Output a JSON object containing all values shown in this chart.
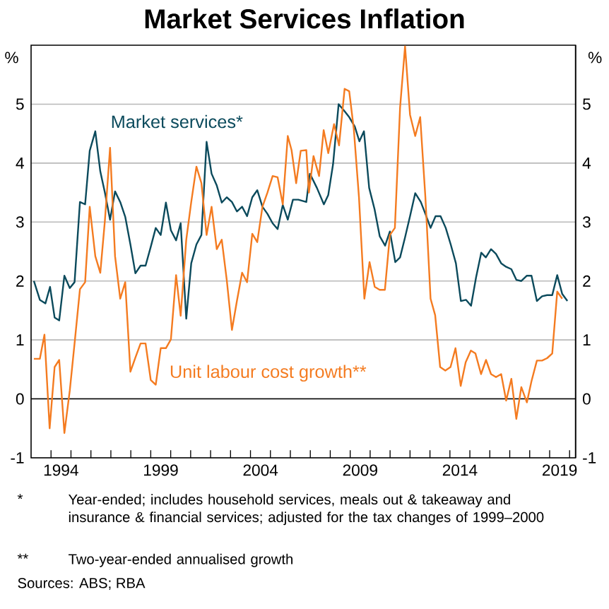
{
  "chart_data": {
    "type": "line",
    "title": "Market Services Inflation",
    "ylabel": "%",
    "y2label": "%",
    "xlim": [
      1993,
      2020.3
    ],
    "ylim": [
      -1,
      6
    ],
    "y2lim": [
      -1,
      6
    ],
    "xticks": [
      {
        "value": 1994.5,
        "label": "1994"
      },
      {
        "value": 1999.5,
        "label": "1999"
      },
      {
        "value": 2004.5,
        "label": "2004"
      },
      {
        "value": 2009.5,
        "label": "2009"
      },
      {
        "value": 2014.5,
        "label": "2014"
      },
      {
        "value": 2019.5,
        "label": "2019"
      },
      {
        "value": 1994,
        "label": null
      },
      {
        "value": 1995,
        "label": null
      },
      {
        "value": 1996,
        "label": null
      },
      {
        "value": 1997,
        "label": null
      },
      {
        "value": 1998,
        "label": null
      },
      {
        "value": 1999,
        "label": null
      },
      {
        "value": 2000,
        "label": null
      },
      {
        "value": 2001,
        "label": null
      },
      {
        "value": 2002,
        "label": null
      },
      {
        "value": 2003,
        "label": null
      },
      {
        "value": 2004,
        "label": null
      },
      {
        "value": 2005,
        "label": null
      },
      {
        "value": 2006,
        "label": null
      },
      {
        "value": 2007,
        "label": null
      },
      {
        "value": 2008,
        "label": null
      },
      {
        "value": 2009,
        "label": null
      },
      {
        "value": 2010,
        "label": null
      },
      {
        "value": 2011,
        "label": null
      },
      {
        "value": 2012,
        "label": null
      },
      {
        "value": 2013,
        "label": null
      },
      {
        "value": 2014,
        "label": null
      },
      {
        "value": 2015,
        "label": null
      },
      {
        "value": 2016,
        "label": null
      },
      {
        "value": 2017,
        "label": null
      },
      {
        "value": 2018,
        "label": null
      },
      {
        "value": 2019,
        "label": null
      },
      {
        "value": 2020,
        "label": null
      }
    ],
    "yticks": [
      -1,
      0,
      1,
      2,
      3,
      4,
      5
    ],
    "y2ticks": [
      -1,
      0,
      1,
      2,
      3,
      4,
      5
    ],
    "grid": "y",
    "legend": false,
    "marker": "none",
    "line_style": "solid",
    "ref_lines": [
      {
        "axis": "y",
        "value": 0,
        "color": "#000000"
      }
    ],
    "series": [
      {
        "name": "Market services*",
        "color": "#0b4a5c",
        "x": [
          1993.14,
          1993.44,
          1993.72,
          1993.95,
          1994.18,
          1994.41,
          1994.67,
          1994.94,
          1995.18,
          1995.45,
          1995.71,
          1995.94,
          1996.22,
          1996.47,
          1996.7,
          1996.96,
          1997.21,
          1997.47,
          1997.72,
          1997.98,
          1998.23,
          1998.49,
          1998.74,
          1999.0,
          1999.25,
          1999.5,
          1999.76,
          2000.01,
          2000.27,
          2000.5,
          2000.78,
          2001.03,
          2001.29,
          2001.54,
          2001.8,
          2002.05,
          2002.31,
          2002.56,
          2002.81,
          2003.07,
          2003.32,
          2003.58,
          2003.83,
          2004.09,
          2004.34,
          2004.6,
          2004.85,
          2005.11,
          2005.36,
          2005.62,
          2005.87,
          2006.13,
          2006.4,
          2006.8,
          2006.98,
          2007.33,
          2007.68,
          2007.9,
          2008.14,
          2008.42,
          2008.72,
          2008.95,
          2009.23,
          2009.46,
          2009.69,
          2009.95,
          2010.22,
          2010.48,
          2010.75,
          2010.99,
          2011.26,
          2011.5,
          2011.75,
          2012.0,
          2012.26,
          2012.54,
          2012.77,
          2013.03,
          2013.28,
          2013.53,
          2013.79,
          2014.04,
          2014.3,
          2014.55,
          2014.81,
          2015.06,
          2015.31,
          2015.57,
          2015.8,
          2016.06,
          2016.31,
          2016.57,
          2016.82,
          2017.08,
          2017.33,
          2017.58,
          2017.86,
          2018.09,
          2018.36,
          2018.62,
          2018.87,
          2019.13,
          2019.38,
          2019.63,
          2019.89
        ],
        "values": [
          2.0,
          1.68,
          1.62,
          1.9,
          1.38,
          1.33,
          2.09,
          1.88,
          1.98,
          3.34,
          3.3,
          4.21,
          4.54,
          3.86,
          3.5,
          3.04,
          3.52,
          3.34,
          3.09,
          2.62,
          2.13,
          2.26,
          2.26,
          2.58,
          2.9,
          2.78,
          3.33,
          2.86,
          2.69,
          2.98,
          1.36,
          2.3,
          2.62,
          2.78,
          4.36,
          3.82,
          3.62,
          3.33,
          3.42,
          3.34,
          3.18,
          3.26,
          3.1,
          3.42,
          3.54,
          3.26,
          3.14,
          2.98,
          2.88,
          3.29,
          3.04,
          3.38,
          3.38,
          3.34,
          3.82,
          3.58,
          3.3,
          3.46,
          3.98,
          5.0,
          4.88,
          4.78,
          4.62,
          4.37,
          4.54,
          3.58,
          3.22,
          2.76,
          2.6,
          2.84,
          2.32,
          2.4,
          2.74,
          3.1,
          3.49,
          3.34,
          3.14,
          2.9,
          3.1,
          3.1,
          2.9,
          2.62,
          2.3,
          1.66,
          1.68,
          1.58,
          2.06,
          2.48,
          2.4,
          2.54,
          2.46,
          2.3,
          2.24,
          2.2,
          2.02,
          2.0,
          2.09,
          2.09,
          1.66,
          1.74,
          1.76,
          1.76,
          2.1,
          1.78,
          1.66
        ]
      },
      {
        "name": "Unit labour cost growth**",
        "color": "#f47b20",
        "x": [
          1993.14,
          1993.44,
          1993.67,
          1993.93,
          1994.18,
          1994.41,
          1994.67,
          1994.94,
          1995.18,
          1995.45,
          1995.71,
          1995.94,
          1996.22,
          1996.47,
          1996.7,
          1996.96,
          1997.21,
          1997.47,
          1997.72,
          1997.98,
          1998.23,
          1998.49,
          1998.74,
          1999.0,
          1999.25,
          1999.5,
          1999.76,
          2000.01,
          2000.27,
          2000.5,
          2000.78,
          2001.03,
          2001.29,
          2001.54,
          2001.8,
          2002.05,
          2002.31,
          2002.56,
          2002.81,
          2003.07,
          2003.32,
          2003.58,
          2003.83,
          2004.09,
          2004.34,
          2004.6,
          2004.85,
          2005.11,
          2005.36,
          2005.62,
          2005.87,
          2006.06,
          2006.29,
          2006.52,
          2006.8,
          2006.93,
          2007.16,
          2007.44,
          2007.67,
          2007.9,
          2008.19,
          2008.44,
          2008.72,
          2008.95,
          2009.18,
          2009.44,
          2009.71,
          2009.97,
          2010.23,
          2010.48,
          2010.74,
          2010.99,
          2011.24,
          2011.5,
          2011.75,
          2012.0,
          2012.26,
          2012.51,
          2012.77,
          2013.03,
          2013.26,
          2013.51,
          2013.77,
          2014.03,
          2014.28,
          2014.54,
          2014.79,
          2015.05,
          2015.28,
          2015.56,
          2015.81,
          2016.06,
          2016.31,
          2016.57,
          2016.82,
          2017.08,
          2017.33,
          2017.58,
          2017.86,
          2018.09,
          2018.36,
          2018.62,
          2018.87,
          2019.13,
          2019.38,
          2019.63
        ],
        "values": [
          0.68,
          0.68,
          1.09,
          -0.5,
          0.54,
          0.66,
          -0.58,
          0.14,
          0.94,
          1.86,
          1.98,
          3.26,
          2.42,
          2.14,
          3.02,
          4.26,
          2.42,
          1.7,
          1.98,
          0.46,
          0.7,
          0.94,
          0.94,
          0.32,
          0.24,
          0.86,
          0.86,
          1.01,
          2.1,
          1.41,
          2.7,
          3.34,
          3.94,
          3.66,
          2.78,
          3.26,
          2.54,
          2.7,
          2.02,
          1.17,
          1.66,
          2.14,
          1.98,
          2.8,
          2.66,
          3.26,
          3.5,
          3.78,
          3.76,
          3.3,
          4.46,
          4.22,
          3.66,
          4.21,
          4.22,
          3.5,
          4.12,
          3.78,
          4.56,
          4.17,
          4.66,
          4.3,
          5.26,
          5.22,
          4.58,
          3.42,
          1.7,
          2.32,
          1.9,
          1.85,
          1.85,
          2.78,
          2.9,
          4.94,
          5.98,
          4.82,
          4.46,
          4.78,
          3.42,
          1.7,
          1.42,
          0.54,
          0.48,
          0.54,
          0.86,
          0.22,
          0.62,
          0.82,
          0.77,
          0.42,
          0.66,
          0.42,
          0.37,
          0.42,
          -0.03,
          0.34,
          -0.34,
          0.2,
          -0.06,
          0.3,
          0.65,
          0.65,
          0.69,
          0.77,
          1.82,
          1.7
        ]
      }
    ],
    "annotations": [
      "*",
      "Year-ended; includes household services, meals out & takeaway and insurance & financial services; adjusted for the tax changes of 1999–2000",
      "**",
      "Two-year-ended annualised growth",
      "Sources: ABS; RBA"
    ]
  }
}
